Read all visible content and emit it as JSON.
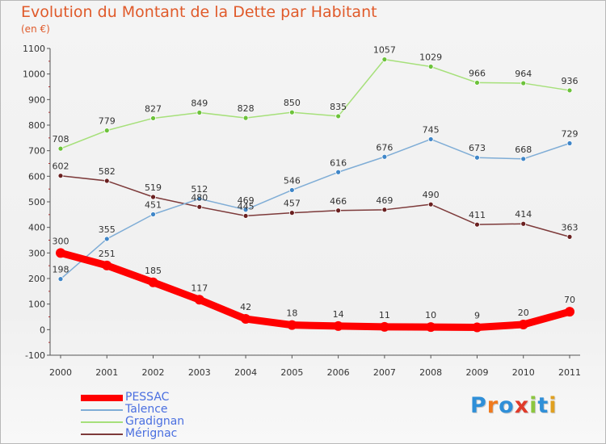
{
  "title": "Evolution du Montant de la Dette par Habitant",
  "subtitle": "(en €)",
  "logo": "Proxiti",
  "chart_data": {
    "type": "line",
    "title": "Evolution du Montant de la Dette par Habitant",
    "ylabel": "(en €)",
    "xlabel": "",
    "x": [
      "2000",
      "2001",
      "2002",
      "2003",
      "2004",
      "2005",
      "2006",
      "2007",
      "2008",
      "2009",
      "2010",
      "2011"
    ],
    "ylim": [
      -100,
      1100
    ],
    "yticks": [
      -100,
      0,
      100,
      200,
      300,
      400,
      500,
      600,
      700,
      800,
      900,
      1000,
      1100
    ],
    "grid": false,
    "legend": "bottom-left",
    "series": [
      {
        "name": "PESSAC",
        "color": "#ff0000",
        "point_color": "#ff0000",
        "values": [
          300,
          251,
          185,
          117,
          42,
          18,
          14,
          11,
          10,
          9,
          20,
          70
        ]
      },
      {
        "name": "Talence",
        "color": "#7fadd6",
        "point_color": "#3f86c8",
        "values": [
          198,
          355,
          451,
          512,
          469,
          546,
          616,
          676,
          745,
          673,
          668,
          729
        ]
      },
      {
        "name": "Gradignan",
        "color": "#a6e07a",
        "point_color": "#6cc23a",
        "values": [
          708,
          779,
          827,
          849,
          828,
          850,
          835,
          1057,
          1029,
          966,
          964,
          936
        ]
      },
      {
        "name": "Mérignac",
        "color": "#7d3a3a",
        "point_color": "#6a2020",
        "values": [
          602,
          582,
          519,
          480,
          445,
          457,
          466,
          469,
          490,
          411,
          414,
          363
        ]
      }
    ]
  }
}
